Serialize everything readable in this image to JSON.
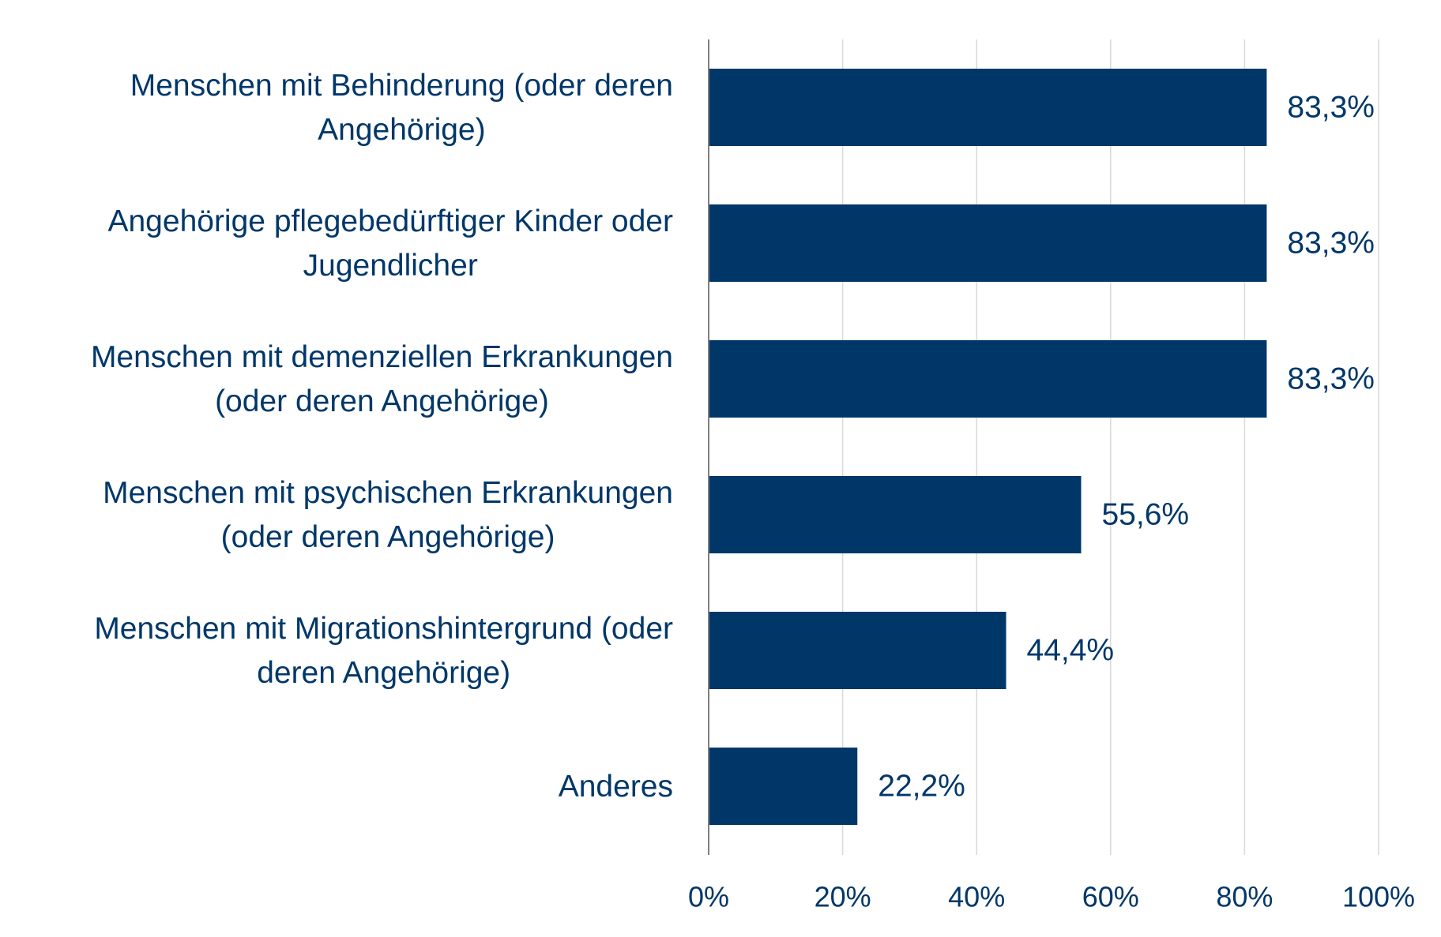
{
  "chart_data": {
    "type": "bar",
    "orientation": "horizontal",
    "title": "",
    "xlabel": "",
    "ylabel": "",
    "xlim": [
      0,
      100
    ],
    "x_ticks": [
      "0%",
      "20%",
      "40%",
      "60%",
      "80%",
      "100%"
    ],
    "x_tick_values": [
      0,
      20,
      40,
      60,
      80,
      100
    ],
    "grid": true,
    "legend": "none",
    "categories": [
      [
        "Menschen mit Behinderung (oder deren",
        "Angehörige)"
      ],
      [
        "Angehörige pflegebedürftiger Kinder oder",
        "Jugendlicher"
      ],
      [
        "Menschen mit demenziellen Erkrankungen",
        "(oder deren Angehörige)"
      ],
      [
        "Menschen mit psychischen Erkrankungen",
        "(oder deren Angehörige)"
      ],
      [
        "Menschen mit Migrationshintergrund (oder",
        "deren Angehörige)"
      ],
      [
        "Anderes"
      ]
    ],
    "values": [
      83.3,
      83.3,
      83.3,
      55.6,
      44.4,
      22.2
    ],
    "data_labels": [
      "83,3%",
      "83,3%",
      "83,3%",
      "55,6%",
      "44,4%",
      "22,2%"
    ],
    "colors": {
      "bar": "#003769",
      "text": "#003769",
      "grid": "#d9d9d9",
      "axis": "#7f7f7f"
    }
  }
}
